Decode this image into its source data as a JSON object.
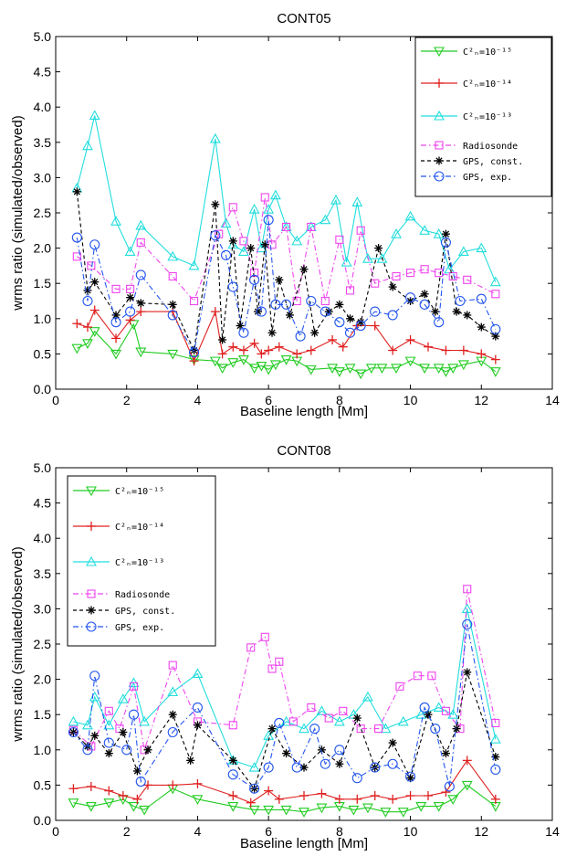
{
  "chart_data": [
    {
      "type": "line",
      "title": "CONT05",
      "xlabel": "Baseline length [Mm]",
      "ylabel": "wrms ratio (simulated/observed)",
      "xlim": [
        0,
        14
      ],
      "ylim": [
        0,
        5
      ],
      "xticks": [
        "0",
        "2",
        "4",
        "6",
        "8",
        "10",
        "12",
        "14"
      ],
      "yticks": [
        "0.0",
        "0.5",
        "1.0",
        "1.5",
        "2.0",
        "2.5",
        "3.0",
        "3.5",
        "4.0",
        "4.5",
        "5.0"
      ],
      "grid": false,
      "legend_position": "top-right",
      "series": [
        {
          "name": "C²ₙ=10⁻¹⁵",
          "color": "#22cc22",
          "marker": "triangle-down",
          "line": "solid",
          "x": [
            0.6,
            0.9,
            1.1,
            1.7,
            2.2,
            2.4,
            3.3,
            3.9,
            4.5,
            4.7,
            5.0,
            5.3,
            5.6,
            5.8,
            6.0,
            6.2,
            6.5,
            6.8,
            7.2,
            7.8,
            8.0,
            8.3,
            8.6,
            8.9,
            9.2,
            9.6,
            10.0,
            10.4,
            10.8,
            11.0,
            11.2,
            11.5,
            12.0,
            12.4
          ],
          "y": [
            0.58,
            0.65,
            0.82,
            0.5,
            0.92,
            0.53,
            0.5,
            0.42,
            0.4,
            0.3,
            0.38,
            0.42,
            0.3,
            0.33,
            0.28,
            0.35,
            0.42,
            0.4,
            0.28,
            0.3,
            0.25,
            0.3,
            0.22,
            0.3,
            0.3,
            0.3,
            0.4,
            0.3,
            0.3,
            0.25,
            0.3,
            0.35,
            0.4,
            0.25
          ]
        },
        {
          "name": "C²ₙ=10⁻¹⁴",
          "color": "#e02020",
          "marker": "plus",
          "line": "solid",
          "x": [
            0.6,
            0.9,
            1.1,
            1.7,
            2.1,
            2.4,
            3.3,
            3.9,
            4.5,
            4.7,
            5.0,
            5.3,
            5.6,
            5.8,
            6.0,
            6.3,
            6.8,
            7.2,
            7.8,
            8.1,
            8.5,
            9.0,
            9.5,
            10.0,
            10.5,
            11.0,
            11.5,
            12.0,
            12.4
          ],
          "y": [
            0.93,
            0.88,
            1.12,
            0.72,
            0.98,
            1.1,
            1.1,
            0.4,
            1.1,
            0.5,
            0.6,
            0.55,
            0.65,
            0.5,
            0.55,
            0.6,
            0.5,
            0.55,
            0.7,
            0.6,
            0.9,
            0.9,
            0.55,
            0.7,
            0.6,
            0.55,
            0.55,
            0.5,
            0.42
          ]
        },
        {
          "name": "C²ₙ=10⁻¹³",
          "color": "#22dddd",
          "marker": "triangle-up",
          "line": "solid",
          "x": [
            0.6,
            0.9,
            1.1,
            1.7,
            2.1,
            2.4,
            3.3,
            3.9,
            4.5,
            4.8,
            5.0,
            5.3,
            5.6,
            5.8,
            6.0,
            6.2,
            6.5,
            6.8,
            7.2,
            7.6,
            7.9,
            8.2,
            8.5,
            8.8,
            9.2,
            9.6,
            10.0,
            10.4,
            10.8,
            11.1,
            11.5,
            12.0,
            12.4
          ],
          "y": [
            2.85,
            3.45,
            3.88,
            2.38,
            1.95,
            2.32,
            1.88,
            1.75,
            3.55,
            2.35,
            2.05,
            1.95,
            2.55,
            2.0,
            2.55,
            2.75,
            2.3,
            2.1,
            2.3,
            2.4,
            2.68,
            1.8,
            2.65,
            1.85,
            1.85,
            2.2,
            2.45,
            2.25,
            2.2,
            1.7,
            1.95,
            2.0,
            1.52
          ]
        },
        {
          "name": "Radiosonde",
          "color": "#ee44ee",
          "marker": "square",
          "line": "dashdot",
          "x": [
            0.6,
            1.0,
            1.7,
            2.1,
            2.4,
            3.3,
            3.9,
            4.6,
            5.0,
            5.3,
            5.6,
            5.9,
            6.1,
            6.5,
            6.8,
            7.2,
            7.6,
            8.0,
            8.3,
            8.6,
            9.0,
            9.6,
            10.0,
            10.4,
            10.8,
            11.2,
            11.6,
            12.4
          ],
          "y": [
            1.88,
            1.75,
            1.42,
            1.42,
            2.08,
            1.6,
            1.25,
            2.2,
            2.58,
            2.1,
            1.65,
            2.72,
            2.05,
            2.3,
            1.25,
            2.3,
            1.25,
            2.12,
            1.4,
            2.25,
            1.5,
            1.6,
            1.65,
            1.7,
            1.65,
            1.6,
            1.55,
            1.35
          ]
        },
        {
          "name": "GPS, const.",
          "color": "#000000",
          "marker": "asterisk",
          "line": "dashed",
          "x": [
            0.6,
            0.9,
            1.1,
            1.7,
            2.1,
            2.4,
            3.3,
            3.9,
            4.5,
            4.7,
            5.0,
            5.2,
            5.5,
            5.7,
            5.9,
            6.1,
            6.3,
            6.6,
            7.0,
            7.3,
            7.7,
            8.0,
            8.3,
            8.6,
            9.1,
            9.5,
            10.0,
            10.4,
            10.7,
            11.0,
            11.3,
            11.6,
            12.0,
            12.4
          ],
          "y": [
            2.8,
            1.4,
            1.52,
            1.05,
            1.3,
            1.22,
            1.2,
            0.55,
            2.62,
            0.7,
            2.1,
            0.9,
            2.0,
            1.1,
            2.05,
            0.8,
            1.55,
            1.05,
            1.7,
            0.8,
            1.1,
            1.2,
            1.0,
            0.95,
            2.0,
            1.45,
            1.25,
            1.35,
            1.1,
            2.2,
            1.1,
            1.05,
            0.88,
            0.75
          ]
        },
        {
          "name": "GPS, exp.",
          "color": "#2255ee",
          "marker": "circle",
          "line": "dashdot",
          "x": [
            0.6,
            0.9,
            1.1,
            1.7,
            2.1,
            2.4,
            3.3,
            3.9,
            4.5,
            4.8,
            5.0,
            5.3,
            5.6,
            5.8,
            6.0,
            6.2,
            6.5,
            6.9,
            7.2,
            7.6,
            8.0,
            8.3,
            8.6,
            9.0,
            9.5,
            10.0,
            10.4,
            10.8,
            11.0,
            11.4,
            12.0,
            12.4
          ],
          "y": [
            2.15,
            1.25,
            2.05,
            0.95,
            1.1,
            1.62,
            1.05,
            0.52,
            2.18,
            1.9,
            1.45,
            0.8,
            1.55,
            1.1,
            2.4,
            1.2,
            1.2,
            0.75,
            1.25,
            1.1,
            0.95,
            0.8,
            0.9,
            1.1,
            1.05,
            1.3,
            1.2,
            0.95,
            2.08,
            1.25,
            1.28,
            0.85
          ]
        }
      ]
    },
    {
      "type": "line",
      "title": "CONT08",
      "xlabel": "Baseline length [Mm]",
      "ylabel": "wrms ratio (simulated/observed)",
      "xlim": [
        0,
        14
      ],
      "ylim": [
        0,
        5
      ],
      "xticks": [
        "0",
        "2",
        "4",
        "6",
        "8",
        "10",
        "12",
        "14"
      ],
      "yticks": [
        "0.0",
        "0.5",
        "1.0",
        "1.5",
        "2.0",
        "2.5",
        "3.0",
        "3.5",
        "4.0",
        "4.5",
        "5.0"
      ],
      "grid": false,
      "legend_position": "top-left",
      "series": [
        {
          "name": "C²ₙ=10⁻¹⁵",
          "color": "#22cc22",
          "marker": "triangle-down",
          "line": "solid",
          "x": [
            0.5,
            1.0,
            1.5,
            1.9,
            2.2,
            2.5,
            3.3,
            4.0,
            5.0,
            5.6,
            6.0,
            6.5,
            7.0,
            7.5,
            8.0,
            8.4,
            8.8,
            9.3,
            9.8,
            10.3,
            10.8,
            11.2,
            11.6,
            12.4
          ],
          "y": [
            0.25,
            0.2,
            0.25,
            0.3,
            0.2,
            0.15,
            0.45,
            0.3,
            0.2,
            0.15,
            0.15,
            0.15,
            0.12,
            0.18,
            0.2,
            0.15,
            0.18,
            0.12,
            0.12,
            0.2,
            0.2,
            0.3,
            0.5,
            0.2
          ]
        },
        {
          "name": "C²ₙ=10⁻¹⁴",
          "color": "#e02020",
          "marker": "plus",
          "line": "solid",
          "x": [
            0.5,
            1.0,
            1.5,
            1.9,
            2.3,
            2.6,
            3.3,
            4.0,
            5.0,
            5.5,
            6.0,
            6.3,
            7.0,
            7.5,
            8.0,
            8.5,
            9.0,
            9.5,
            10.0,
            10.5,
            11.0,
            11.6,
            12.4
          ],
          "y": [
            0.45,
            0.48,
            0.42,
            0.35,
            0.3,
            0.5,
            0.5,
            0.52,
            0.35,
            0.25,
            0.42,
            0.3,
            0.35,
            0.38,
            0.3,
            0.3,
            0.35,
            0.3,
            0.35,
            0.35,
            0.4,
            0.85,
            0.3
          ]
        },
        {
          "name": "C²ₙ=10⁻¹³",
          "color": "#22dddd",
          "marker": "triangle-up",
          "line": "solid",
          "x": [
            0.5,
            0.9,
            1.1,
            1.5,
            1.9,
            2.2,
            2.5,
            3.3,
            4.0,
            5.0,
            5.6,
            6.0,
            6.5,
            7.0,
            7.5,
            8.0,
            8.4,
            8.8,
            9.3,
            9.8,
            10.3,
            10.8,
            11.2,
            11.6,
            12.4
          ],
          "y": [
            1.4,
            1.35,
            1.75,
            1.35,
            1.72,
            1.95,
            1.4,
            1.82,
            2.08,
            0.85,
            0.75,
            1.2,
            1.4,
            1.3,
            1.55,
            1.4,
            1.5,
            1.75,
            1.3,
            1.4,
            1.5,
            1.6,
            1.5,
            3.0,
            1.15
          ]
        },
        {
          "name": "Radiosonde",
          "color": "#ee44ee",
          "marker": "square",
          "line": "dashdot",
          "x": [
            0.5,
            1.0,
            1.5,
            1.8,
            2.2,
            2.5,
            3.3,
            4.0,
            5.0,
            5.5,
            5.9,
            6.1,
            6.3,
            6.7,
            7.2,
            7.7,
            8.1,
            8.6,
            9.1,
            9.7,
            10.2,
            10.6,
            11.0,
            11.4,
            11.6,
            12.4
          ],
          "y": [
            1.28,
            1.05,
            1.55,
            1.3,
            1.9,
            1.0,
            2.2,
            1.4,
            1.35,
            2.45,
            2.6,
            2.15,
            2.25,
            1.4,
            1.6,
            1.45,
            1.55,
            1.3,
            1.3,
            1.9,
            2.05,
            2.05,
            1.55,
            1.3,
            3.28,
            1.38
          ]
        },
        {
          "name": "GPS, const.",
          "color": "#000000",
          "marker": "asterisk",
          "line": "dashed",
          "x": [
            0.5,
            0.9,
            1.1,
            1.5,
            1.9,
            2.3,
            2.6,
            3.3,
            3.8,
            4.0,
            5.0,
            5.6,
            6.1,
            6.5,
            7.0,
            7.5,
            8.0,
            8.5,
            9.0,
            9.5,
            10.0,
            10.5,
            11.0,
            11.3,
            11.6,
            12.4
          ],
          "y": [
            1.25,
            1.05,
            1.2,
            0.95,
            1.25,
            0.7,
            1.0,
            1.5,
            0.85,
            1.35,
            0.85,
            0.45,
            1.3,
            0.95,
            0.75,
            1.0,
            0.8,
            1.45,
            0.75,
            1.1,
            0.6,
            1.5,
            0.95,
            1.3,
            2.1,
            0.9
          ]
        },
        {
          "name": "GPS, exp.",
          "color": "#2255ee",
          "marker": "circle",
          "line": "dashdot",
          "x": [
            0.5,
            0.9,
            1.1,
            1.5,
            2.0,
            2.2,
            2.4,
            3.3,
            4.0,
            5.0,
            5.6,
            6.0,
            6.3,
            6.8,
            7.3,
            7.6,
            8.0,
            8.5,
            9.0,
            9.5,
            10.0,
            10.4,
            10.7,
            11.1,
            11.6,
            12.4
          ],
          "y": [
            1.25,
            1.0,
            2.05,
            1.1,
            1.0,
            1.5,
            0.55,
            1.25,
            1.6,
            0.65,
            0.45,
            0.75,
            1.38,
            0.75,
            1.3,
            0.8,
            1.0,
            0.6,
            0.75,
            0.8,
            0.62,
            1.6,
            1.3,
            0.48,
            2.78,
            0.72
          ]
        }
      ]
    }
  ]
}
